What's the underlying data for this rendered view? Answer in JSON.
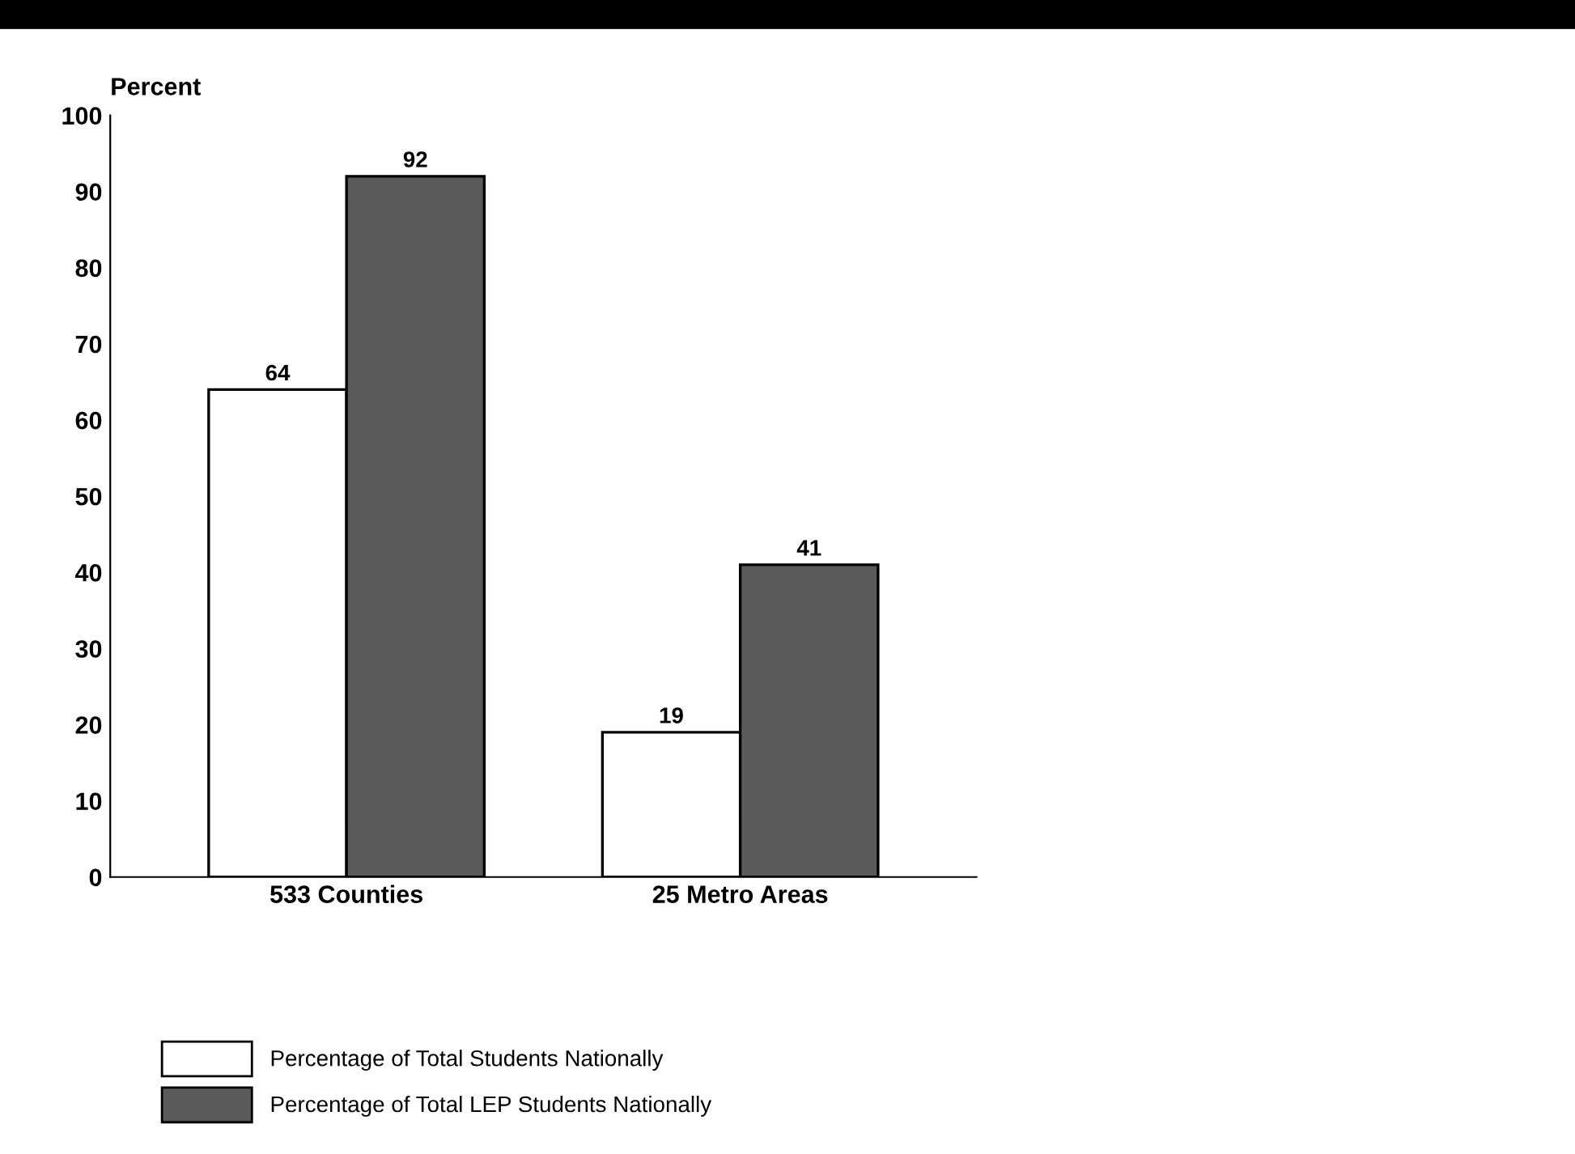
{
  "chart_data": {
    "type": "bar",
    "ylabel": "Percent",
    "categories": [
      "533 Counties",
      "25 Metro Areas"
    ],
    "series": [
      {
        "name": "Percentage of Total Students Nationally",
        "color": "#ffffff",
        "values": [
          64,
          19
        ]
      },
      {
        "name": "Percentage of Total LEP Students Nationally",
        "color": "#5a5a5a",
        "values": [
          92,
          41
        ]
      }
    ],
    "ylim": [
      0,
      100
    ],
    "yticks": [
      0,
      10,
      20,
      30,
      40,
      50,
      60,
      70,
      80,
      90,
      100
    ],
    "data_labels": true,
    "grid": false,
    "legend": "bottom left"
  }
}
